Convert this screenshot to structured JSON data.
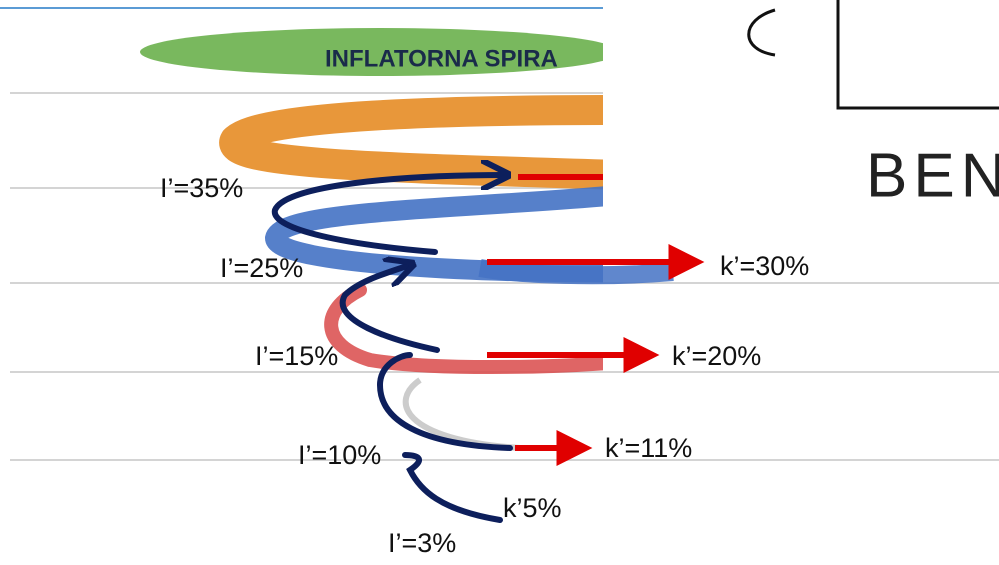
{
  "title": "INFLATORNA SPIRA",
  "left_labels": [
    "I’=35%",
    "I’=25%",
    "I’=15%",
    "I’=10%",
    "I’=3%"
  ],
  "right_labels": [
    "k’=30%",
    "k’=20%",
    "k’=11%",
    "k’5%"
  ],
  "side_text": "BEN"
}
